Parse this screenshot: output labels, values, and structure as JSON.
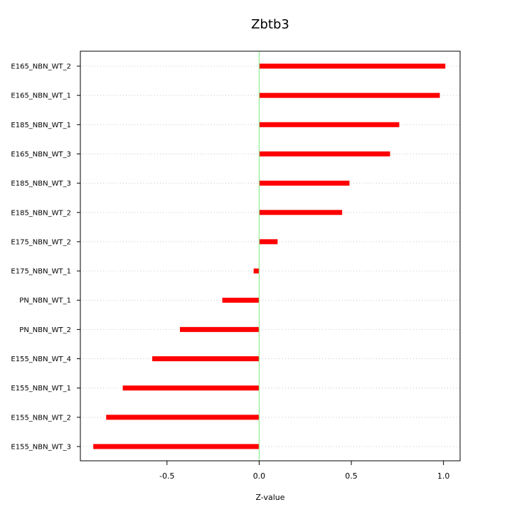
{
  "chart_data": {
    "type": "bar",
    "orientation": "horizontal",
    "title": "Zbtb3",
    "xlabel": "Z-value",
    "ylabel": "",
    "xlim": [
      -0.97,
      1.09
    ],
    "xticks": [
      -0.5,
      0.0,
      0.5,
      1.0
    ],
    "xtick_labels": [
      "-0.5",
      "0.0",
      "0.5",
      "1.0"
    ],
    "grid": "horizontal dotted",
    "reference_line": {
      "x": 0.0,
      "color": "#90ee90"
    },
    "bar_color": "#ff0000",
    "categories": [
      "E165_NBN_WT_2",
      "E165_NBN_WT_1",
      "E185_NBN_WT_1",
      "E165_NBN_WT_3",
      "E185_NBN_WT_3",
      "E185_NBN_WT_2",
      "E175_NBN_WT_2",
      "E175_NBN_WT_1",
      "PN_NBN_WT_1",
      "PN_NBN_WT_2",
      "E155_NBN_WT_4",
      "E155_NBN_WT_1",
      "E155_NBN_WT_2",
      "E155_NBN_WT_3"
    ],
    "values": [
      1.01,
      0.98,
      0.76,
      0.71,
      0.49,
      0.45,
      0.1,
      -0.03,
      -0.2,
      -0.43,
      -0.58,
      -0.74,
      -0.83,
      -0.9
    ]
  }
}
